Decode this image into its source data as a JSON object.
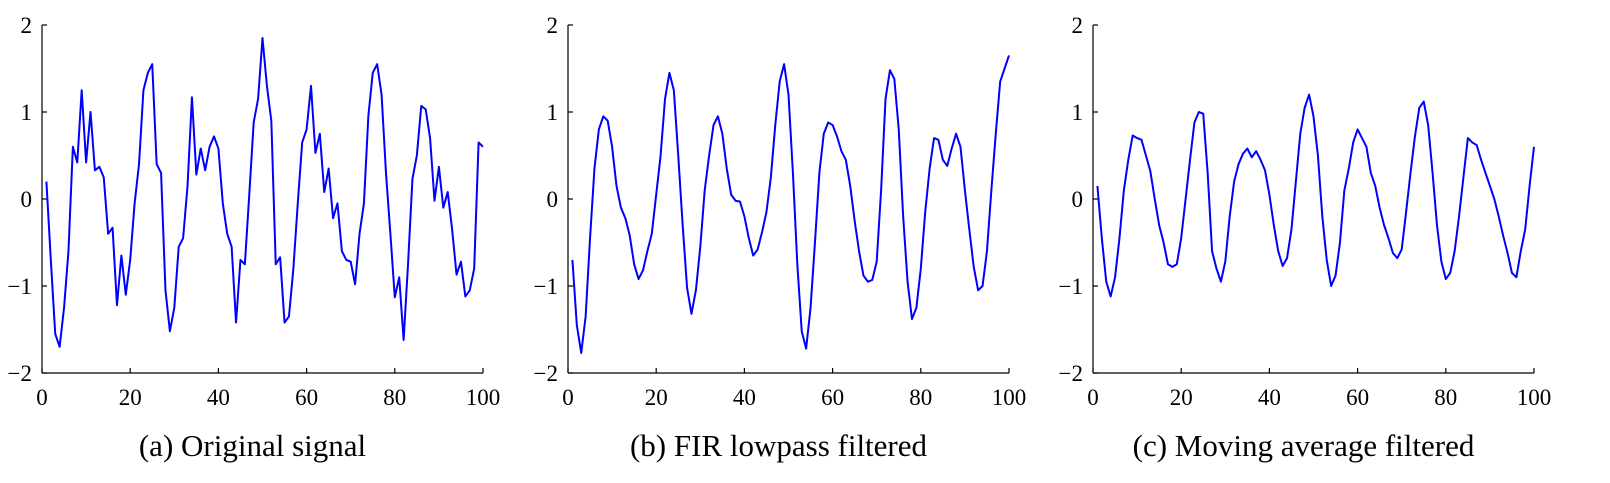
{
  "chart_data": [
    {
      "type": "line",
      "title": "(a) Original signal",
      "color": "#0000ff",
      "x": [
        1,
        2,
        3,
        4,
        5,
        6,
        7,
        8,
        9,
        10,
        11,
        12,
        13,
        14,
        15,
        16,
        17,
        18,
        19,
        20,
        21,
        22,
        23,
        24,
        25,
        26,
        27,
        28,
        29,
        30,
        31,
        32,
        33,
        34,
        35,
        36,
        37,
        38,
        39,
        40,
        41,
        42,
        43,
        44,
        45,
        46,
        47,
        48,
        49,
        50,
        51,
        52,
        53,
        54,
        55,
        56,
        57,
        58,
        59,
        60,
        61,
        62,
        63,
        64,
        65,
        66,
        67,
        68,
        69,
        70,
        71,
        72,
        73,
        74,
        75,
        76,
        77,
        78,
        79,
        80,
        81,
        82,
        83,
        84,
        85,
        86,
        87,
        88,
        89,
        90,
        91,
        92,
        93,
        94,
        95,
        96,
        97,
        98,
        99,
        100
      ],
      "values": [
        0.2,
        -0.7,
        -1.55,
        -1.7,
        -1.25,
        -0.6,
        0.6,
        0.42,
        1.25,
        0.42,
        1.0,
        0.33,
        0.37,
        0.25,
        -0.4,
        -0.33,
        -1.22,
        -0.65,
        -1.1,
        -0.7,
        -0.05,
        0.4,
        1.25,
        1.45,
        1.55,
        0.4,
        0.3,
        -1.05,
        -1.52,
        -1.25,
        -0.55,
        -0.45,
        0.15,
        1.17,
        0.28,
        0.58,
        0.33,
        0.6,
        0.72,
        0.58,
        -0.05,
        -0.4,
        -0.55,
        -1.42,
        -0.7,
        -0.75,
        0.05,
        0.88,
        1.15,
        1.85,
        1.3,
        0.9,
        -0.75,
        -0.67,
        -1.42,
        -1.35,
        -0.8,
        -0.05,
        0.65,
        0.8,
        1.3,
        0.53,
        0.75,
        0.08,
        0.35,
        -0.22,
        -0.05,
        -0.6,
        -0.7,
        -0.72,
        -0.98,
        -0.4,
        -0.05,
        0.95,
        1.45,
        1.55,
        1.2,
        0.3,
        -0.4,
        -1.13,
        -0.9,
        -1.62,
        -0.75,
        0.23,
        0.5,
        1.07,
        1.03,
        0.7,
        -0.02,
        0.37,
        -0.1,
        0.08,
        -0.35,
        -0.87,
        -0.72,
        -1.12,
        -1.05,
        -0.8,
        0.65,
        0.6
      ],
      "xlim": [
        0,
        100
      ],
      "xticks": [
        0,
        20,
        40,
        60,
        80,
        100
      ],
      "ylim": [
        -2,
        2
      ],
      "yticks": [
        {
          "value": -2,
          "label": "−2"
        },
        {
          "value": -1,
          "label": "−1"
        },
        0,
        1,
        2
      ]
    },
    {
      "type": "line",
      "title": "(b) FIR lowpass filtered",
      "color": "#0000ff",
      "x": [
        1,
        2,
        3,
        4,
        5,
        6,
        7,
        8,
        9,
        10,
        11,
        12,
        13,
        14,
        15,
        16,
        17,
        18,
        19,
        20,
        21,
        22,
        23,
        24,
        25,
        26,
        27,
        28,
        29,
        30,
        31,
        32,
        33,
        34,
        35,
        36,
        37,
        38,
        39,
        40,
        41,
        42,
        43,
        44,
        45,
        46,
        47,
        48,
        49,
        50,
        51,
        52,
        53,
        54,
        55,
        56,
        57,
        58,
        59,
        60,
        61,
        62,
        63,
        64,
        65,
        66,
        67,
        68,
        69,
        70,
        71,
        72,
        73,
        74,
        75,
        76,
        77,
        78,
        79,
        80,
        81,
        82,
        83,
        84,
        85,
        86,
        87,
        88,
        89,
        90,
        91,
        92,
        93,
        94,
        95,
        96,
        97,
        98,
        99,
        100
      ],
      "values": [
        -0.7,
        -1.45,
        -1.77,
        -1.35,
        -0.45,
        0.35,
        0.8,
        0.95,
        0.9,
        0.6,
        0.15,
        -0.1,
        -0.22,
        -0.42,
        -0.75,
        -0.92,
        -0.82,
        -0.6,
        -0.4,
        0.05,
        0.5,
        1.15,
        1.45,
        1.25,
        0.5,
        -0.3,
        -1.02,
        -1.32,
        -1.05,
        -0.55,
        0.1,
        0.5,
        0.85,
        0.95,
        0.75,
        0.35,
        0.05,
        -0.02,
        -0.03,
        -0.2,
        -0.45,
        -0.65,
        -0.58,
        -0.38,
        -0.15,
        0.25,
        0.85,
        1.35,
        1.55,
        1.2,
        0.3,
        -0.75,
        -1.52,
        -1.72,
        -1.25,
        -0.5,
        0.3,
        0.75,
        0.88,
        0.85,
        0.72,
        0.55,
        0.45,
        0.15,
        -0.25,
        -0.6,
        -0.88,
        -0.95,
        -0.93,
        -0.72,
        0.1,
        1.15,
        1.48,
        1.38,
        0.8,
        -0.2,
        -0.95,
        -1.38,
        -1.25,
        -0.8,
        -0.15,
        0.35,
        0.7,
        0.68,
        0.45,
        0.38,
        0.58,
        0.75,
        0.6,
        0.1,
        -0.35,
        -0.78,
        -1.05,
        -1.0,
        -0.6,
        0.1,
        0.75,
        1.35,
        1.5,
        1.65
      ],
      "xlim": [
        0,
        100
      ],
      "xticks": [
        0,
        20,
        40,
        60,
        80,
        100
      ],
      "ylim": [
        -2,
        2
      ],
      "yticks": [
        {
          "value": -2,
          "label": "−2"
        },
        {
          "value": -1,
          "label": "−1"
        },
        0,
        1,
        2
      ]
    },
    {
      "type": "line",
      "title": "(c) Moving average filtered",
      "color": "#0000ff",
      "x": [
        1,
        2,
        3,
        4,
        5,
        6,
        7,
        8,
        9,
        10,
        11,
        12,
        13,
        14,
        15,
        16,
        17,
        18,
        19,
        20,
        21,
        22,
        23,
        24,
        25,
        26,
        27,
        28,
        29,
        30,
        31,
        32,
        33,
        34,
        35,
        36,
        37,
        38,
        39,
        40,
        41,
        42,
        43,
        44,
        45,
        46,
        47,
        48,
        49,
        50,
        51,
        52,
        53,
        54,
        55,
        56,
        57,
        58,
        59,
        60,
        61,
        62,
        63,
        64,
        65,
        66,
        67,
        68,
        69,
        70,
        71,
        72,
        73,
        74,
        75,
        76,
        77,
        78,
        79,
        80,
        81,
        82,
        83,
        84,
        85,
        86,
        87,
        88,
        89,
        90,
        91,
        92,
        93,
        94,
        95,
        96,
        97,
        98,
        99,
        100
      ],
      "values": [
        0.15,
        -0.45,
        -0.95,
        -1.12,
        -0.9,
        -0.45,
        0.1,
        0.45,
        0.73,
        0.7,
        0.68,
        0.5,
        0.32,
        0.0,
        -0.3,
        -0.5,
        -0.75,
        -0.78,
        -0.75,
        -0.45,
        0.0,
        0.45,
        0.88,
        1.0,
        0.98,
        0.3,
        -0.6,
        -0.8,
        -0.95,
        -0.72,
        -0.2,
        0.2,
        0.4,
        0.52,
        0.58,
        0.48,
        0.55,
        0.45,
        0.33,
        0.05,
        -0.3,
        -0.6,
        -0.77,
        -0.68,
        -0.35,
        0.2,
        0.75,
        1.05,
        1.2,
        0.95,
        0.5,
        -0.2,
        -0.7,
        -1.0,
        -0.88,
        -0.5,
        0.1,
        0.35,
        0.65,
        0.8,
        0.7,
        0.6,
        0.3,
        0.15,
        -0.1,
        -0.3,
        -0.45,
        -0.62,
        -0.68,
        -0.58,
        -0.15,
        0.3,
        0.72,
        1.05,
        1.12,
        0.85,
        0.3,
        -0.3,
        -0.72,
        -0.92,
        -0.85,
        -0.6,
        -0.2,
        0.25,
        0.7,
        0.65,
        0.62,
        0.45,
        0.3,
        0.15,
        0.0,
        -0.2,
        -0.42,
        -0.62,
        -0.85,
        -0.9,
        -0.6,
        -0.35,
        0.15,
        0.6
      ],
      "xlim": [
        0,
        100
      ],
      "xticks": [
        0,
        20,
        40,
        60,
        80,
        100
      ],
      "ylim": [
        -2,
        2
      ],
      "yticks": [
        {
          "value": -2,
          "label": "−2"
        },
        {
          "value": -1,
          "label": "−1"
        },
        0,
        1,
        2
      ]
    }
  ]
}
